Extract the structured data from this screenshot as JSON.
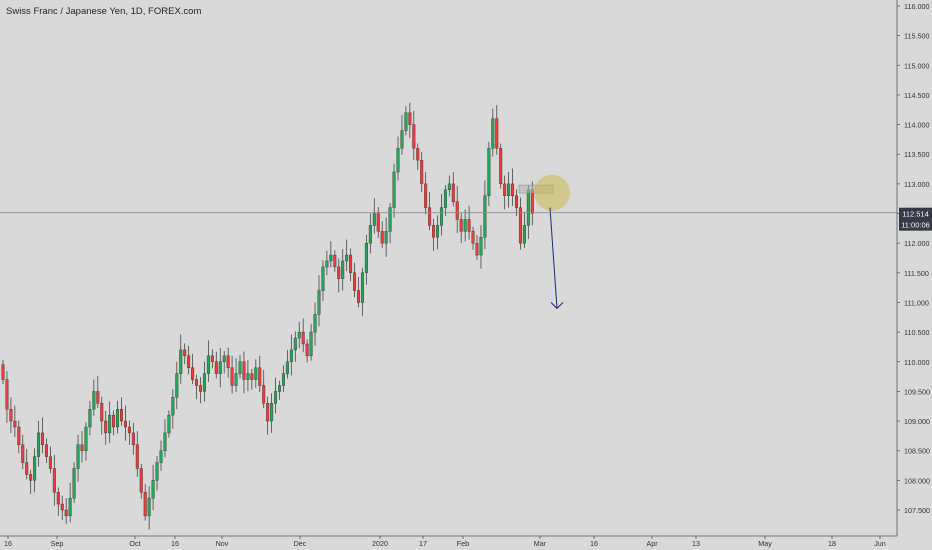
{
  "header": {
    "title": "Swiss Franc / Japanese Yen, 1D, FOREX.com"
  },
  "price_axis": {
    "current_price": "112.514",
    "countdown": "11:00:06",
    "price_tag_color": "#363a45"
  },
  "colors": {
    "background": "#d9d9d9",
    "up_candle": "#26a65b",
    "down_candle": "#ef3b3b",
    "wick": "#444444",
    "arrow": "#1a2580",
    "highlight_circle": "#c8b84a",
    "highlight_box": "#b3b3b3"
  },
  "annotations": {
    "arrow": {
      "from": [
        "Mar 04",
        112.6
      ],
      "to": [
        "Mar 06",
        110.9
      ],
      "direction": "down"
    },
    "circle": {
      "center": [
        "Mar 04",
        112.9
      ],
      "radius_price": 0.35
    },
    "box": {
      "x0": "Feb 25",
      "x1": "Mar 04",
      "y0": 112.8,
      "y1": 112.95
    }
  },
  "chart_data": {
    "type": "candlestick",
    "title": "Swiss Franc / Japanese Yen, 1D, FOREX.com",
    "ylim": [
      107.3,
      116.2
    ],
    "y_ticks": [
      "116.000",
      "115.500",
      "115.000",
      "114.500",
      "114.000",
      "113.500",
      "113.000",
      "112.500",
      "112.000",
      "111.500",
      "111.000",
      "110.500",
      "110.000",
      "109.500",
      "109.000",
      "108.500",
      "108.000",
      "107.500"
    ],
    "x_ticks": [
      "16",
      "Sep",
      "Oct",
      "16",
      "Nov",
      "Dec",
      "2020",
      "17",
      "Feb",
      "Mar",
      "16",
      "Apr",
      "13",
      "May",
      "18",
      "Jun"
    ],
    "last_price": 112.514,
    "grid": false,
    "closes": [
      109.7,
      109.2,
      109.0,
      108.9,
      108.6,
      108.3,
      108.1,
      108.0,
      108.4,
      108.8,
      108.6,
      108.4,
      108.2,
      107.8,
      107.6,
      107.5,
      107.4,
      107.7,
      108.2,
      108.6,
      108.5,
      108.9,
      109.2,
      109.5,
      109.3,
      109.0,
      108.8,
      109.1,
      108.9,
      109.2,
      109.0,
      108.9,
      108.8,
      108.6,
      108.2,
      107.8,
      107.4,
      107.7,
      108.0,
      108.3,
      108.5,
      108.8,
      109.1,
      109.4,
      109.8,
      110.2,
      110.1,
      109.9,
      109.7,
      109.6,
      109.5,
      109.8,
      110.1,
      110.0,
      109.8,
      110.0,
      110.1,
      109.9,
      109.6,
      109.8,
      110.0,
      109.7,
      109.8,
      109.7,
      109.9,
      109.6,
      109.3,
      109.0,
      109.3,
      109.5,
      109.6,
      109.8,
      110.0,
      110.2,
      110.4,
      110.5,
      110.3,
      110.1,
      110.5,
      110.8,
      111.2,
      111.6,
      111.7,
      111.8,
      111.6,
      111.4,
      111.7,
      111.8,
      111.5,
      111.2,
      111.0,
      111.5,
      112.0,
      112.3,
      112.5,
      112.2,
      112.0,
      112.2,
      112.6,
      113.2,
      113.6,
      113.9,
      114.2,
      114.0,
      113.6,
      113.4,
      113.0,
      112.6,
      112.3,
      112.1,
      112.3,
      112.6,
      112.9,
      113.0,
      112.7,
      112.4,
      112.2,
      112.4,
      112.2,
      112.0,
      111.8,
      112.1,
      112.8,
      113.6,
      114.1,
      113.6,
      113.0,
      112.8,
      113.0,
      112.8,
      112.6,
      112.0,
      112.3,
      112.9,
      112.5
    ]
  }
}
